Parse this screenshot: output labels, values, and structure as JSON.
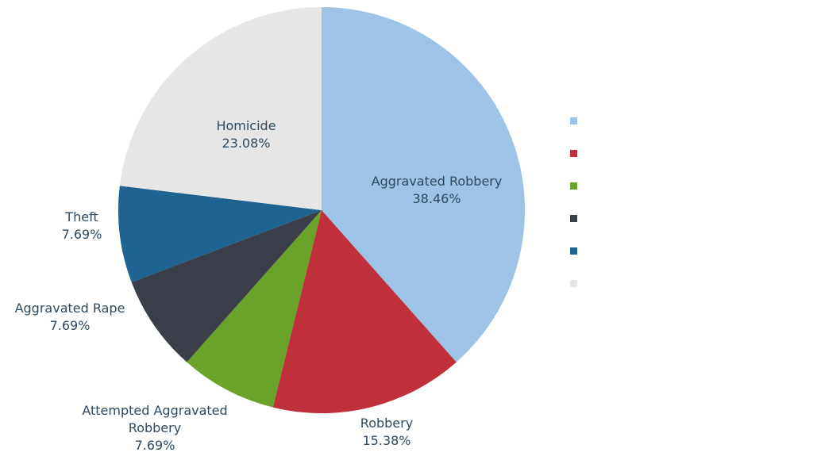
{
  "chart_data": {
    "type": "pie",
    "categories": [
      "Aggravated Robbery",
      "Robbery",
      "Attempted Aggravated Robbery",
      "Aggravated Rape",
      "Theft",
      "Homicide"
    ],
    "values": [
      38.46,
      15.38,
      7.69,
      7.69,
      7.69,
      23.08
    ],
    "value_labels": [
      "38.46%",
      "15.38%",
      "7.69%",
      "7.69%",
      "7.69%",
      "23.08%"
    ],
    "colors": [
      "#9dc3e6",
      "#c0303a",
      "#6aa329",
      "#3a3f4a",
      "#1f6391",
      "#e6e6e6"
    ],
    "legend": "right"
  }
}
